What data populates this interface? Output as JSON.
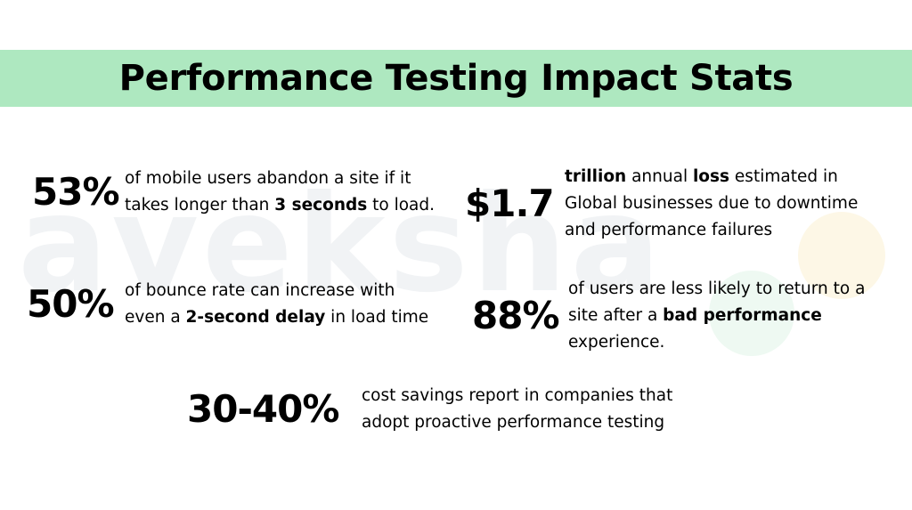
{
  "title": "Performance Testing Impact Stats",
  "watermark": "aveksha",
  "colors": {
    "title_band": "#aee8c0",
    "text": "#000000",
    "background": "#ffffff"
  },
  "stats": [
    {
      "value": "53%",
      "lines": [
        [
          {
            "t": "of mobile users abandon a site if it",
            "b": false
          }
        ],
        [
          {
            "t": "takes longer than ",
            "b": false
          },
          {
            "t": "3 seconds",
            "b": true
          },
          {
            "t": " to load.",
            "b": false
          }
        ]
      ]
    },
    {
      "value": "$1.7",
      "lines": [
        [
          {
            "t": "trillion",
            "b": true
          },
          {
            "t": " annual ",
            "b": false
          },
          {
            "t": "loss",
            "b": true
          },
          {
            "t": " estimated in",
            "b": false
          }
        ],
        [
          {
            "t": "Global businesses due to downtime",
            "b": false
          }
        ],
        [
          {
            "t": "and performance failures",
            "b": false
          }
        ]
      ]
    },
    {
      "value": "50%",
      "lines": [
        [
          {
            "t": "of bounce rate can increase with",
            "b": false
          }
        ],
        [
          {
            "t": "even a ",
            "b": false
          },
          {
            "t": "2-second delay",
            "b": true
          },
          {
            "t": " in load time",
            "b": false
          }
        ]
      ]
    },
    {
      "value": "88%",
      "lines": [
        [
          {
            "t": "of users are less likely to return to a",
            "b": false
          }
        ],
        [
          {
            "t": "site after a ",
            "b": false
          },
          {
            "t": "bad performance",
            "b": true
          }
        ],
        [
          {
            "t": "experience.",
            "b": false
          }
        ]
      ]
    },
    {
      "value": "30-40%",
      "lines": [
        [
          {
            "t": "cost savings report in companies that",
            "b": false
          }
        ],
        [
          {
            "t": "adopt proactive performance testing",
            "b": false
          }
        ]
      ]
    }
  ]
}
